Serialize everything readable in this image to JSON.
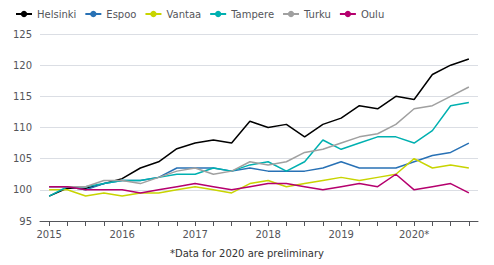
{
  "chart_data": {
    "type": "line",
    "annotations": [
      "*Data for 2020 are preliminary"
    ],
    "categories": [
      "2015",
      null,
      null,
      null,
      "2016",
      null,
      null,
      null,
      "2017",
      null,
      null,
      null,
      "2018",
      null,
      null,
      null,
      "2019",
      null,
      null,
      null,
      "2020*",
      null,
      null,
      null
    ],
    "series": [
      {
        "name": "Helsinki",
        "color": "#000000",
        "values": [
          99.0,
          100.3,
          100.2,
          101.0,
          101.8,
          103.5,
          104.5,
          106.6,
          107.5,
          108.0,
          107.5,
          111.0,
          110.0,
          110.5,
          108.5,
          110.5,
          111.5,
          113.5,
          113.0,
          115.0,
          114.5,
          118.5,
          120.0,
          121.0
        ]
      },
      {
        "name": "Espoo",
        "color": "#2871b5",
        "values": [
          100.5,
          100.5,
          100.0,
          101.0,
          101.5,
          101.5,
          102.0,
          103.5,
          103.5,
          103.5,
          103.0,
          103.5,
          103.0,
          103.0,
          103.0,
          103.5,
          104.5,
          103.5,
          103.5,
          103.5,
          104.5,
          105.5,
          106.0,
          107.5
        ]
      },
      {
        "name": "Vantaa",
        "color": "#c8d400",
        "values": [
          100.0,
          100.0,
          99.0,
          99.5,
          99.0,
          99.5,
          99.5,
          100.0,
          100.5,
          100.0,
          99.5,
          101.0,
          101.5,
          100.5,
          101.0,
          101.5,
          102.0,
          101.5,
          102.0,
          102.5,
          105.0,
          103.5,
          104.0,
          103.5
        ]
      },
      {
        "name": "Tampere",
        "color": "#00b0b0",
        "values": [
          99.0,
          100.5,
          100.5,
          101.0,
          101.5,
          101.5,
          102.0,
          102.5,
          102.5,
          103.5,
          103.0,
          104.0,
          104.5,
          103.0,
          104.5,
          108.0,
          106.5,
          107.5,
          108.5,
          108.5,
          107.5,
          109.5,
          113.5,
          114.0
        ]
      },
      {
        "name": "Turku",
        "color": "#a0a0a0",
        "values": [
          100.5,
          100.5,
          100.5,
          101.5,
          101.5,
          101.0,
          102.0,
          103.0,
          103.5,
          102.5,
          103.0,
          104.5,
          104.0,
          104.5,
          106.0,
          106.5,
          107.5,
          108.5,
          109.0,
          110.5,
          113.0,
          113.5,
          115.0,
          116.5
        ]
      },
      {
        "name": "Oulu",
        "color": "#b5006e",
        "values": [
          100.5,
          100.5,
          100.0,
          100.0,
          100.0,
          99.5,
          100.0,
          100.5,
          101.0,
          100.5,
          100.0,
          100.5,
          101.0,
          101.0,
          100.5,
          100.0,
          100.5,
          101.0,
          100.5,
          102.5,
          100.0,
          100.5,
          101.0,
          99.5
        ]
      }
    ],
    "ylim": [
      95,
      125
    ],
    "yticks": [
      95,
      100,
      105,
      110,
      115,
      120,
      125
    ],
    "grid": true,
    "legend": "upper left"
  }
}
